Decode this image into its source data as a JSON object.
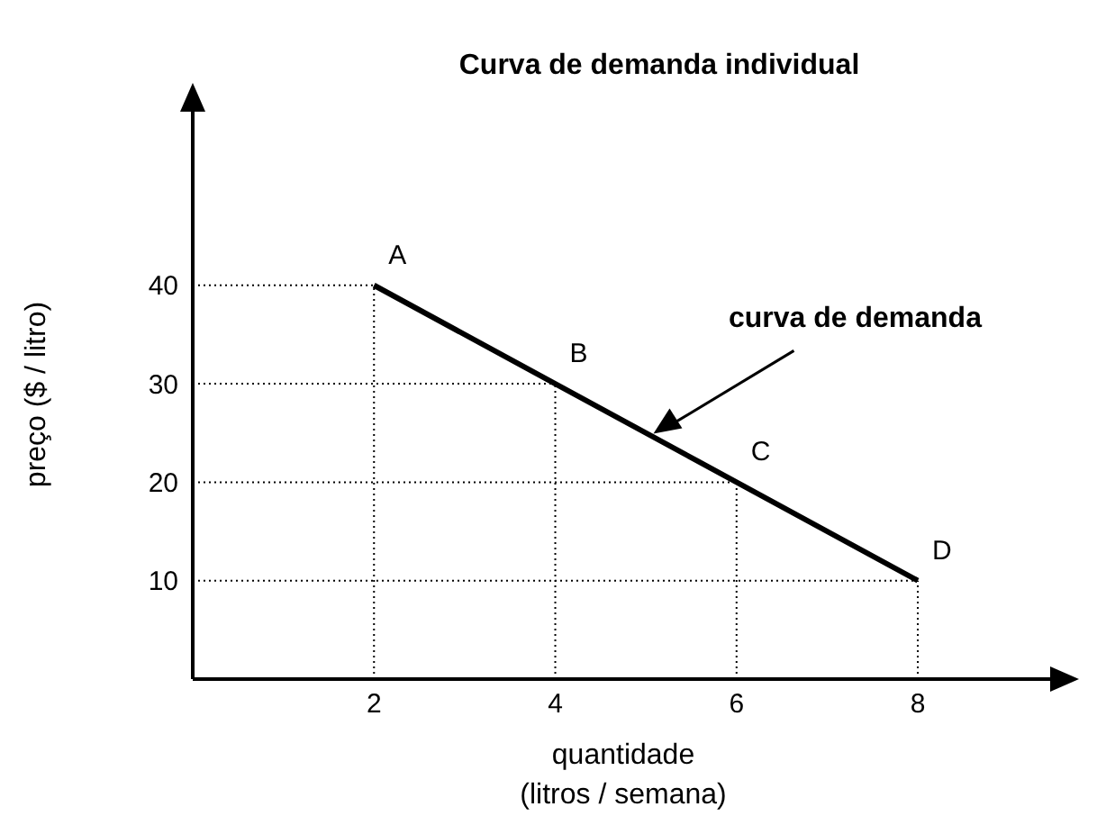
{
  "chart_data": {
    "type": "line",
    "title": "Curva de demanda individual",
    "xlabel": "quantidade (litros / semana)",
    "ylabel": "preço ($ / litro)",
    "x": [
      2,
      4,
      6,
      8
    ],
    "series": [
      {
        "color": "#000000",
        "values": [
          40,
          30,
          20,
          10
        ]
      }
    ],
    "xlim": [
      0,
      9.5
    ],
    "xticks": [
      2,
      4,
      6,
      8
    ],
    "ylim": [
      0,
      58
    ],
    "yticks": [
      10,
      20,
      30,
      40
    ],
    "annotations": [
      {
        "text": "A",
        "x": 2,
        "y": 40
      },
      {
        "text": "B",
        "x": 4,
        "y": 30
      },
      {
        "text": "C",
        "x": 6,
        "y": 20
      },
      {
        "text": "D",
        "x": 8,
        "y": 10
      },
      "curva de demanda"
    ]
  }
}
